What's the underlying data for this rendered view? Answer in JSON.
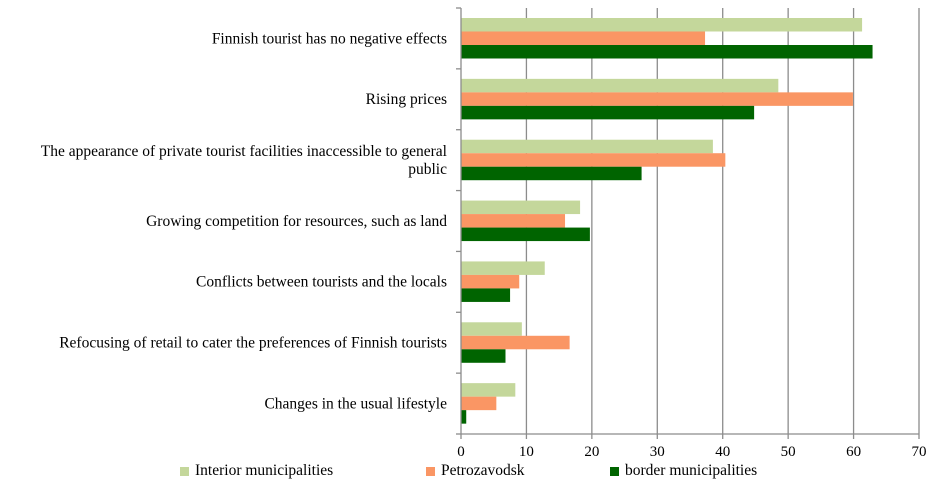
{
  "chart_data": {
    "type": "bar",
    "orientation": "horizontal",
    "categories": [
      "Finnish tourist has no negative effects",
      "Rising prices",
      "The appearance of private tourist facilities inaccessible to general public",
      "Growing competition for resources, such as land",
      "Conflicts between tourists and the locals",
      "Refocusing of retail to cater the preferences of Finnish tourists",
      "Changes in the usual lifestyle"
    ],
    "category_lines": [
      [
        "Finnish tourist has no negative effects"
      ],
      [
        "Rising prices"
      ],
      [
        "The appearance of private tourist facilities inaccessible to general",
        "public"
      ],
      [
        "Growing competition for resources, such as land"
      ],
      [
        "Conflicts between tourists and the locals"
      ],
      [
        "Refocusing of retail to cater the preferences of Finnish tourists"
      ],
      [
        "Changes in the usual lifestyle"
      ]
    ],
    "series": [
      {
        "name": "Interior municipalities",
        "color": "#c4d79b",
        "values": [
          61.3,
          48.5,
          38.5,
          18.2,
          12.8,
          9.3,
          8.3
        ]
      },
      {
        "name": "Petrozavodsk",
        "color": "#fa9664",
        "values": [
          37.3,
          59.9,
          40.4,
          15.9,
          8.9,
          16.6,
          5.4
        ]
      },
      {
        "name": "border municipalities",
        "color": "#006400",
        "values": [
          62.9,
          44.8,
          27.6,
          19.7,
          7.5,
          6.8,
          0.8
        ]
      }
    ],
    "xlim": [
      0,
      70
    ],
    "xticks": [
      0,
      10,
      20,
      30,
      40,
      50,
      60,
      70
    ],
    "grid": true,
    "legend": "bottom"
  }
}
